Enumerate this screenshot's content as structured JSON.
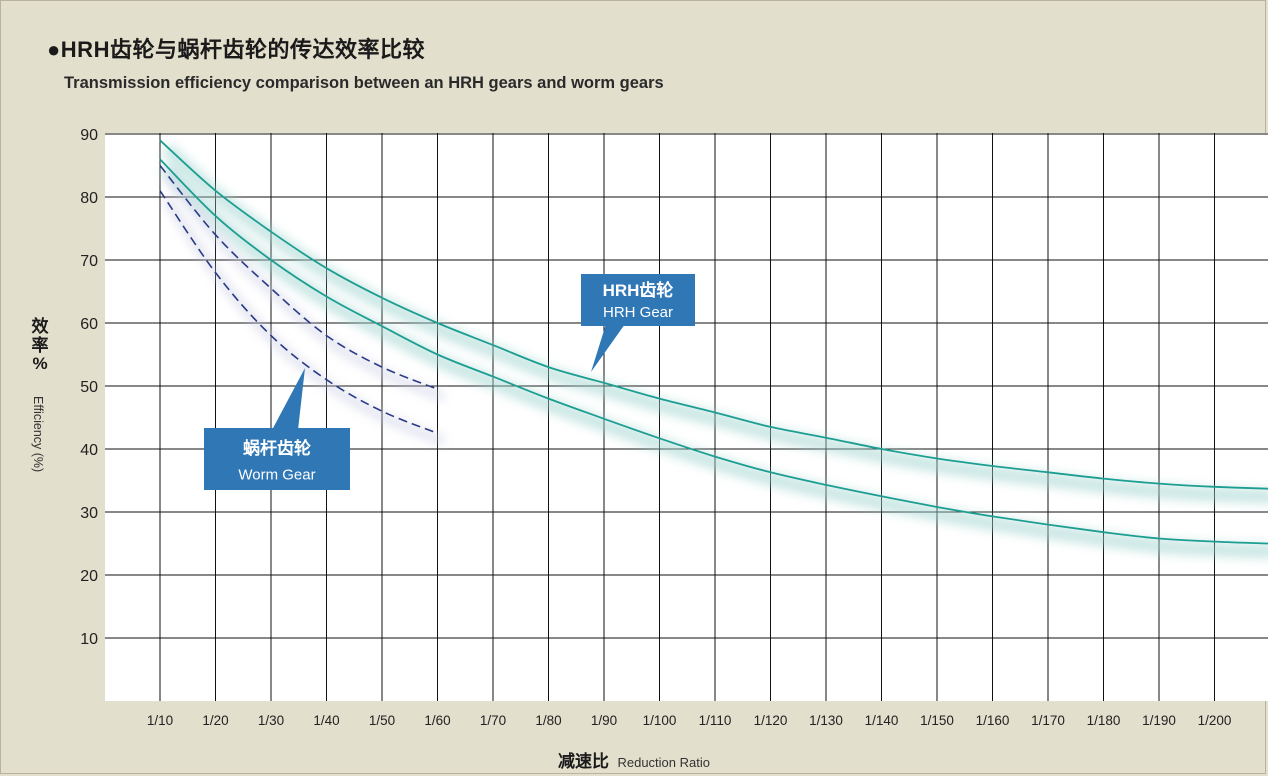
{
  "title": "●HRH齿轮与蜗杆齿轮的传达效率比较",
  "subtitle": "Transmission efficiency comparison between an HRH gears and worm gears",
  "colors": {
    "background": "#e3dfcd",
    "plot_bg": "#ffffff",
    "hrh": "#1c9e92",
    "worm": "#2a3a86",
    "callout": "#2f77b5"
  },
  "chart_data": {
    "type": "line",
    "title": "HRH齿轮与蜗杆齿轮的传达效率比较",
    "subtitle": "Transmission efficiency comparison between an HRH gears and worm gears",
    "xlabel_zh": "减速比",
    "xlabel_en": "Reduction Ratio",
    "ylabel_zh": "效率 %",
    "ylabel_en": "Efficiency (%)",
    "ylim": [
      0,
      90
    ],
    "yticks": [
      10,
      20,
      30,
      40,
      50,
      60,
      70,
      80,
      90
    ],
    "x_tick_labels": [
      "1/10",
      "1/20",
      "1/30",
      "1/40",
      "1/50",
      "1/60",
      "1/70",
      "1/80",
      "1/90",
      "1/100",
      "1/110",
      "1/120",
      "1/130",
      "1/140",
      "1/150",
      "1/160",
      "1/170",
      "1/180",
      "1/190",
      "1/200"
    ],
    "x_ratio": [
      10,
      20,
      30,
      40,
      50,
      60,
      70,
      80,
      90,
      100,
      110,
      120,
      130,
      140,
      150,
      160,
      170,
      180,
      190,
      200
    ],
    "grid": true,
    "series": [
      {
        "group": "HRH",
        "style": "solid",
        "x": [
          10,
          20,
          30,
          40,
          50,
          60,
          70,
          80,
          90,
          100,
          110,
          120,
          130,
          140,
          150,
          160,
          170,
          180,
          190,
          200
        ],
        "values": [
          89,
          81,
          74.5,
          68.7,
          64,
          60,
          56.5,
          53,
          50.5,
          48,
          45.8,
          43.5,
          41.8,
          40,
          38.5,
          37.3,
          36.3,
          35.3,
          34.5,
          34
        ]
      },
      {
        "group": "HRH",
        "style": "solid",
        "x": [
          10,
          20,
          30,
          40,
          50,
          60,
          70,
          80,
          90,
          100,
          110,
          120,
          130,
          140,
          150,
          160,
          170,
          180,
          190,
          200
        ],
        "values": [
          86,
          77,
          70,
          64.2,
          59.5,
          55,
          51.5,
          48,
          44.8,
          41.7,
          38.8,
          36.3,
          34.3,
          32.5,
          30.8,
          29.3,
          28,
          26.8,
          25.8,
          25.3
        ]
      },
      {
        "group": "Worm",
        "style": "dashed",
        "x": [
          10,
          20,
          30,
          40,
          50,
          60
        ],
        "values": [
          85,
          74,
          65.5,
          58,
          53,
          49.5
        ]
      },
      {
        "group": "Worm",
        "style": "dashed",
        "x": [
          10,
          20,
          30,
          40,
          50,
          60
        ],
        "values": [
          81,
          68,
          58,
          51,
          46,
          42.5
        ]
      }
    ],
    "annotations": [
      {
        "zh": "HRH齿轮",
        "en": "HRH Gear"
      },
      {
        "zh": "蜗杆齿轮",
        "en": "Worm Gear"
      }
    ]
  }
}
